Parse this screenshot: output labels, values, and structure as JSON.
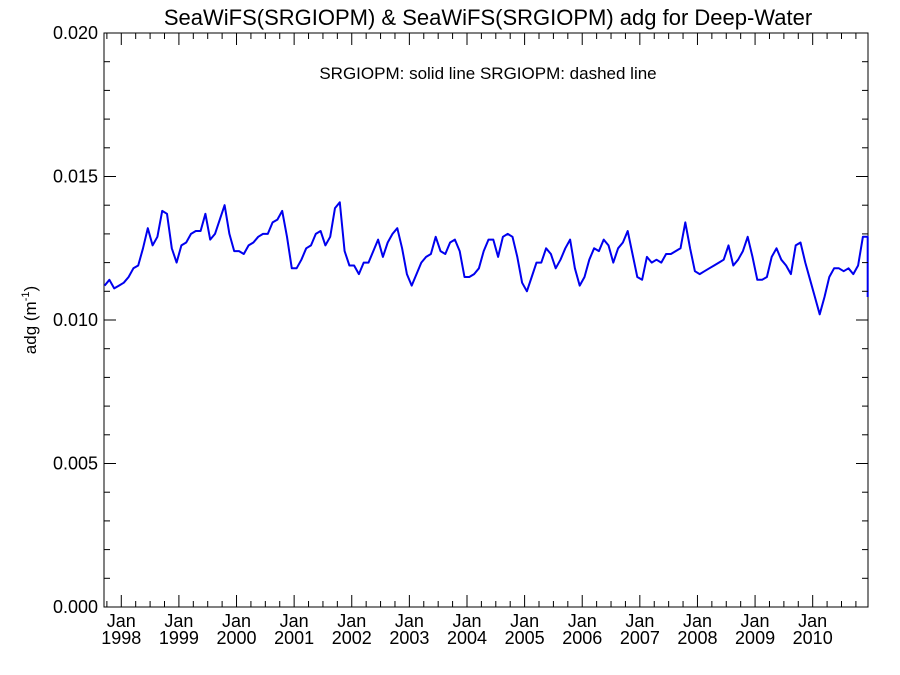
{
  "chart_data": {
    "type": "line",
    "title": "SeaWiFS(SRGIOPM) & SeaWiFS(SRGIOPM)  adg for Deep-Water",
    "annotation": "SRGIOPM: solid line   SRGIOPM: dashed line",
    "ylabel_main": "adg (m",
    "ylabel_sup": "-1",
    "ylabel_close": ")",
    "xlabel": "",
    "ylim": [
      0.0,
      0.02
    ],
    "yticks": [
      {
        "value": 0.0,
        "label": "0.000"
      },
      {
        "value": 0.005,
        "label": "0.005"
      },
      {
        "value": 0.01,
        "label": "0.010"
      },
      {
        "value": 0.015,
        "label": "0.015"
      },
      {
        "value": 0.02,
        "label": "0.020"
      }
    ],
    "xlim": [
      1997.7,
      2010.96
    ],
    "xticks": [
      {
        "value": 1998.0,
        "month": "Jan",
        "year": "1998"
      },
      {
        "value": 1999.0,
        "month": "Jan",
        "year": "1999"
      },
      {
        "value": 2000.0,
        "month": "Jan",
        "year": "2000"
      },
      {
        "value": 2001.0,
        "month": "Jan",
        "year": "2001"
      },
      {
        "value": 2002.0,
        "month": "Jan",
        "year": "2002"
      },
      {
        "value": 2003.0,
        "month": "Jan",
        "year": "2003"
      },
      {
        "value": 2004.0,
        "month": "Jan",
        "year": "2004"
      },
      {
        "value": 2005.0,
        "month": "Jan",
        "year": "2005"
      },
      {
        "value": 2006.0,
        "month": "Jan",
        "year": "2006"
      },
      {
        "value": 2007.0,
        "month": "Jan",
        "year": "2007"
      },
      {
        "value": 2008.0,
        "month": "Jan",
        "year": "2008"
      },
      {
        "value": 2009.0,
        "month": "Jan",
        "year": "2009"
      },
      {
        "value": 2010.0,
        "month": "Jan",
        "year": "2010"
      }
    ],
    "x_start": 1997.71,
    "x_step": 0.0833,
    "series": [
      {
        "color": "#0000ee",
        "style": "solid",
        "values": [
          0.0112,
          0.0114,
          0.0111,
          0.0112,
          0.0113,
          0.0115,
          0.0118,
          0.0119,
          0.0125,
          0.0132,
          0.0126,
          0.0129,
          0.0138,
          0.0137,
          0.0125,
          0.012,
          0.0126,
          0.0127,
          0.013,
          0.0131,
          0.0131,
          0.0137,
          0.0128,
          0.013,
          0.0135,
          0.014,
          0.013,
          0.0124,
          0.0124,
          0.0123,
          0.0126,
          0.0127,
          0.0129,
          0.013,
          0.013,
          0.0134,
          0.0135,
          0.0138,
          0.0129,
          0.0118,
          0.0118,
          0.0121,
          0.0125,
          0.0126,
          0.013,
          0.0131,
          0.0126,
          0.0129,
          0.0139,
          0.0141,
          0.0124,
          0.0119,
          0.0119,
          0.0116,
          0.012,
          0.012,
          0.0124,
          0.0128,
          0.0122,
          0.0127,
          0.013,
          0.0132,
          0.0125,
          0.0116,
          0.0112,
          0.0116,
          0.012,
          0.0122,
          0.0123,
          0.0129,
          0.0124,
          0.0123,
          0.0127,
          0.0128,
          0.0124,
          0.0115,
          0.0115,
          0.0116,
          0.0118,
          0.0124,
          0.0128,
          0.0128,
          0.0122,
          0.0129,
          0.013,
          0.0129,
          0.0122,
          0.0113,
          0.011,
          0.0115,
          0.012,
          0.012,
          0.0125,
          0.0123,
          0.0118,
          0.0121,
          0.0125,
          0.0128,
          0.0118,
          0.0112,
          0.0115,
          0.0121,
          0.0125,
          0.0124,
          0.0128,
          0.0126,
          0.012,
          0.0125,
          0.0127,
          0.0131,
          0.0123,
          0.0115,
          0.0114,
          0.0122,
          0.012,
          0.0121,
          0.012,
          0.0123,
          0.0123,
          0.0124,
          0.0125,
          0.0134,
          0.0125,
          0.0117,
          0.0116,
          0.0117,
          0.0118,
          0.0119,
          0.012,
          0.0121,
          0.0126,
          0.0119,
          0.0121,
          0.0124,
          0.0129,
          0.0122,
          0.0114,
          0.0114,
          0.0115,
          0.0122,
          0.0125,
          0.0121,
          0.0119,
          0.0116,
          0.0126,
          0.0127,
          0.012,
          0.0114,
          0.0108,
          0.0102,
          0.0108,
          0.0115,
          0.0118,
          0.0118,
          0.0117,
          0.0118,
          0.0116,
          0.0119,
          0.0129,
          0.0129,
          0.0121,
          0.0108,
          0.0108
        ]
      }
    ]
  }
}
